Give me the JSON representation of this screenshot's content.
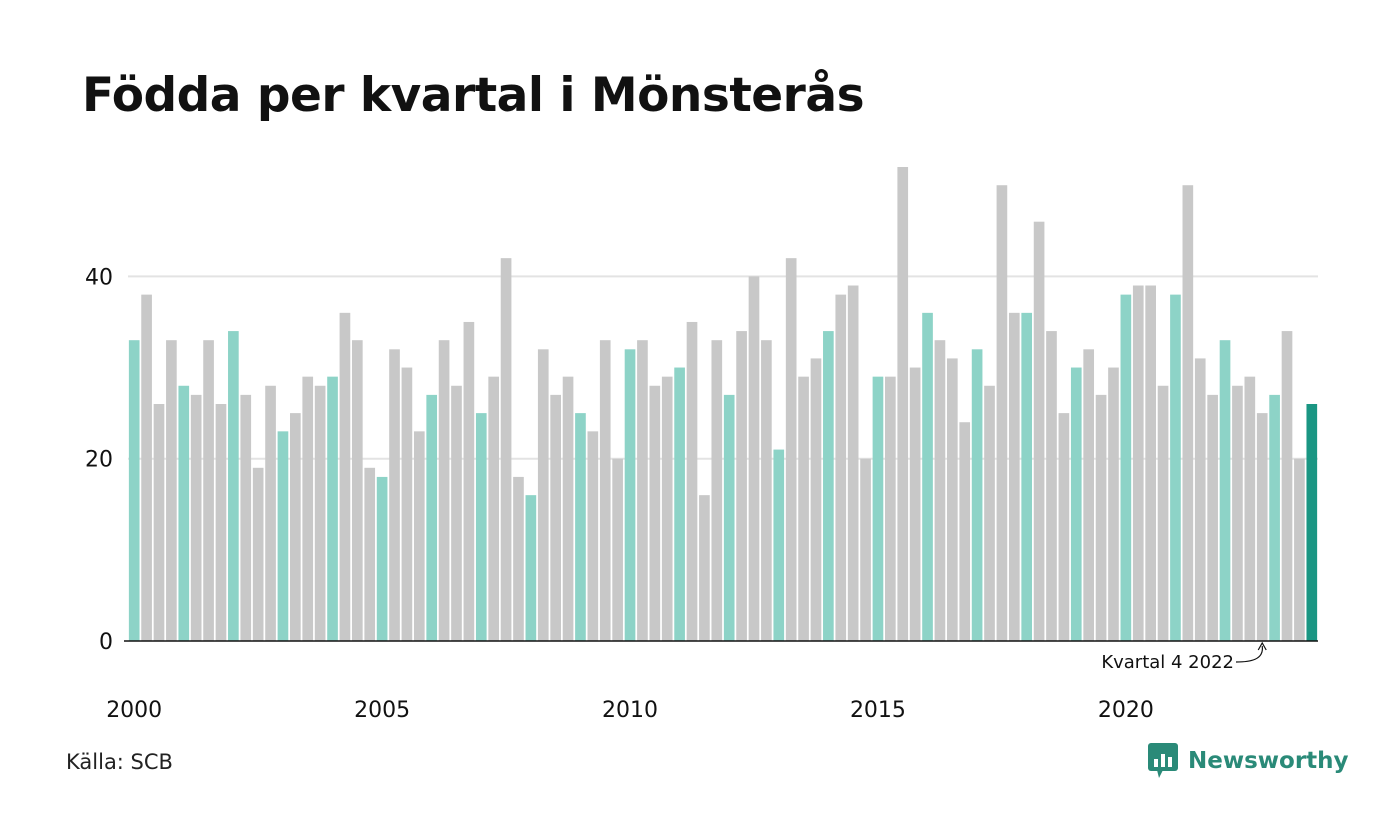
{
  "title": "Födda per kvartal i Mönsterås",
  "source": "Källa: SCB",
  "brand": {
    "name": "Newsworthy",
    "icon": "newsworthy-logo-icon"
  },
  "colors": {
    "other_quarter": "#c8c8c8",
    "q1_quarter": "#8dd3c7",
    "latest_quarter": "#1a9683",
    "brand": "#2a8a78"
  },
  "chart_data": {
    "type": "bar",
    "title": "Födda per kvartal i Mönsterås",
    "xlabel": "",
    "ylabel": "",
    "ylim": [
      0,
      52
    ],
    "yticks": [
      0,
      20,
      40
    ],
    "xticks": [
      {
        "label": "2000",
        "year": 2000
      },
      {
        "label": "2005",
        "year": 2005
      },
      {
        "label": "2010",
        "year": 2010
      },
      {
        "label": "2015",
        "year": 2015
      },
      {
        "label": "2020",
        "year": 2020
      }
    ],
    "grid": true,
    "start": {
      "year": 2000,
      "quarter": 1
    },
    "highlight": "Kvartal 1 of each year in teal; latest quarter in dark teal",
    "annotation": {
      "text": "Kvartal 4 2022",
      "target_index": 91
    },
    "values": [
      33,
      38,
      26,
      33,
      28,
      27,
      33,
      26,
      34,
      27,
      19,
      28,
      23,
      25,
      29,
      28,
      29,
      36,
      33,
      19,
      18,
      32,
      30,
      23,
      27,
      33,
      28,
      35,
      25,
      29,
      42,
      18,
      16,
      32,
      27,
      29,
      25,
      23,
      33,
      20,
      32,
      33,
      28,
      29,
      30,
      35,
      16,
      33,
      27,
      34,
      40,
      33,
      21,
      42,
      29,
      31,
      34,
      38,
      39,
      20,
      29,
      29,
      52,
      30,
      36,
      33,
      31,
      24,
      32,
      28,
      50,
      36,
      36,
      46,
      34,
      25,
      30,
      32,
      27,
      30,
      38,
      39,
      39,
      28,
      38,
      50,
      31,
      27,
      33,
      28,
      29,
      25,
      27,
      34,
      20,
      26
    ]
  }
}
